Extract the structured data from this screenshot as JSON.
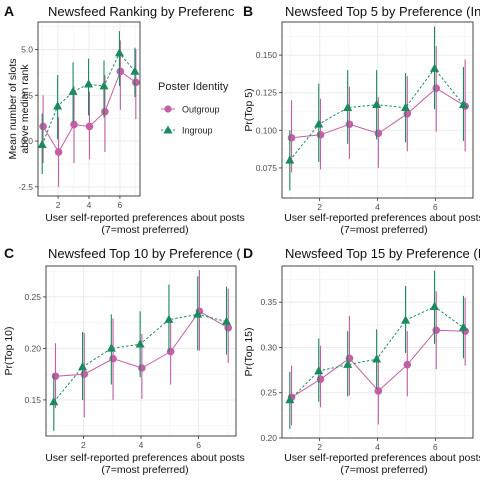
{
  "legend": {
    "title": "Poster Identity",
    "entries": [
      "Outgroup",
      "Ingroup"
    ],
    "position": "right of panel A"
  },
  "colors": {
    "outgroup": "#c45fa6",
    "ingroup": "#1b8a5e",
    "grid": "#ebebeb",
    "panel_border": "#333333"
  },
  "chart_data": [
    {
      "panel_tag": "A",
      "type": "line",
      "title": "Newsfeed Ranking by Preferenc",
      "xlabel": "User self-reported preferences about posts\n(7=most preferred)",
      "ylabel": "Mean number of slots\nabove median rank",
      "xlim": [
        0.7,
        7.3
      ],
      "ylim": [
        -3.0,
        6.5
      ],
      "xticks": [
        2,
        4,
        6
      ],
      "yticks": [
        -2.5,
        0.0,
        2.5,
        5.0
      ],
      "ytick_labels": [
        "-2.5",
        "0.0",
        "2.5",
        "5.0"
      ],
      "x": [
        1,
        2,
        3,
        4,
        5,
        6,
        7
      ],
      "grid": true,
      "series": [
        {
          "name": "Outgroup",
          "y": [
            0.8,
            -0.6,
            0.9,
            0.8,
            1.6,
            3.8,
            3.2
          ],
          "lower": [
            -1.2,
            -2.5,
            -1.2,
            -1.0,
            -0.6,
            1.7,
            1.2
          ],
          "upper": [
            2.5,
            1.3,
            3.0,
            2.7,
            3.6,
            5.5,
            5.0
          ]
        },
        {
          "name": "Ingroup",
          "y": [
            -0.2,
            1.9,
            2.7,
            3.1,
            3.0,
            4.8,
            3.8
          ],
          "lower": [
            -1.8,
            0.1,
            1.0,
            1.4,
            1.3,
            3.0,
            2.4
          ],
          "upper": [
            1.5,
            3.6,
            4.3,
            4.5,
            4.4,
            6.0,
            5.1
          ]
        }
      ]
    },
    {
      "panel_tag": "B",
      "type": "line",
      "title": "Newsfeed Top 5 by Preference (In",
      "xlabel": "User self-reported preferences about posts\n(7=most preferred)",
      "ylabel": "Pr(Top 5)",
      "xlim": [
        0.7,
        7.3
      ],
      "ylim": [
        0.055,
        0.172
      ],
      "xticks": [
        2,
        4,
        6
      ],
      "yticks": [
        0.075,
        0.1,
        0.125,
        0.15
      ],
      "ytick_labels": [
        "0.075",
        "0.100",
        "0.125",
        "0.150"
      ],
      "x": [
        1,
        2,
        3,
        4,
        5,
        6,
        7
      ],
      "grid": true,
      "series": [
        {
          "name": "Outgroup",
          "y": [
            0.095,
            0.097,
            0.104,
            0.098,
            0.111,
            0.128,
            0.116
          ],
          "lower": [
            0.072,
            0.074,
            0.081,
            0.075,
            0.086,
            0.099,
            0.086
          ],
          "upper": [
            0.12,
            0.121,
            0.129,
            0.122,
            0.136,
            0.156,
            0.147
          ]
        },
        {
          "name": "Ingroup",
          "y": [
            0.08,
            0.104,
            0.115,
            0.117,
            0.115,
            0.141,
            0.117
          ],
          "lower": [
            0.06,
            0.079,
            0.091,
            0.094,
            0.092,
            0.114,
            0.093
          ],
          "upper": [
            0.1,
            0.131,
            0.14,
            0.14,
            0.138,
            0.169,
            0.142
          ]
        }
      ]
    },
    {
      "panel_tag": "C",
      "type": "line",
      "title": "Newsfeed Top 10 by Preference (I",
      "xlabel": "User self-reported preferences about posts\n(7=most preferred)",
      "ylabel": "Pr(Top 10)",
      "xlim": [
        0.7,
        7.3
      ],
      "ylim": [
        0.115,
        0.28
      ],
      "xticks": [
        2,
        4,
        6
      ],
      "yticks": [
        0.15,
        0.2,
        0.25
      ],
      "ytick_labels": [
        "0.15",
        "0.20",
        "0.25"
      ],
      "x": [
        1,
        2,
        3,
        4,
        5,
        6,
        7
      ],
      "grid": true,
      "series": [
        {
          "name": "Outgroup",
          "y": [
            0.173,
            0.175,
            0.19,
            0.181,
            0.197,
            0.236,
            0.22
          ],
          "lower": [
            0.142,
            0.133,
            0.15,
            0.151,
            0.165,
            0.198,
            0.186
          ],
          "upper": [
            0.205,
            0.215,
            0.229,
            0.214,
            0.228,
            0.276,
            0.258
          ]
        },
        {
          "name": "Ingroup",
          "y": [
            0.148,
            0.182,
            0.2,
            0.204,
            0.228,
            0.233,
            0.226
          ],
          "lower": [
            0.12,
            0.15,
            0.165,
            0.172,
            0.197,
            0.198,
            0.194
          ],
          "upper": [
            0.175,
            0.216,
            0.233,
            0.236,
            0.262,
            0.27,
            0.26
          ]
        }
      ]
    },
    {
      "panel_tag": "D",
      "type": "line",
      "title": "Newsfeed Top 15 by Preference (I",
      "xlabel": "User self-reported preferences about posts\n(7=most preferred)",
      "ylabel": "Pr(Top 15)",
      "xlim": [
        0.7,
        7.3
      ],
      "ylim": [
        0.2,
        0.39
      ],
      "xticks": [
        2,
        4,
        6
      ],
      "yticks": [
        0.2,
        0.25,
        0.3,
        0.35
      ],
      "ytick_labels": [
        "0.20",
        "0.25",
        "0.30",
        "0.35"
      ],
      "x": [
        1,
        2,
        3,
        4,
        5,
        6,
        7
      ],
      "grid": true,
      "series": [
        {
          "name": "Outgroup",
          "y": [
            0.245,
            0.265,
            0.288,
            0.252,
            0.281,
            0.319,
            0.318
          ],
          "lower": [
            0.214,
            0.234,
            0.247,
            0.215,
            0.246,
            0.276,
            0.28
          ],
          "upper": [
            0.28,
            0.302,
            0.335,
            0.29,
            0.318,
            0.362,
            0.355
          ]
        },
        {
          "name": "Ingroup",
          "y": [
            0.242,
            0.274,
            0.281,
            0.287,
            0.33,
            0.345,
            0.322
          ],
          "lower": [
            0.21,
            0.24,
            0.246,
            0.254,
            0.294,
            0.304,
            0.288
          ],
          "upper": [
            0.273,
            0.31,
            0.318,
            0.32,
            0.368,
            0.385,
            0.357
          ]
        }
      ]
    }
  ]
}
